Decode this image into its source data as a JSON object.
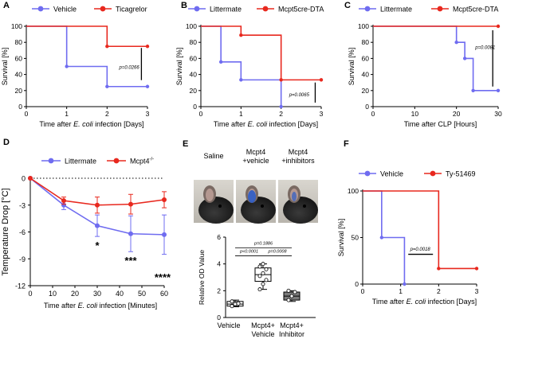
{
  "colors": {
    "blue": "#6f6cf0",
    "red": "#e8281e",
    "axis": "#000000",
    "box_white": "#ffffff",
    "box_gray": "#7a7a7a"
  },
  "chart_data": [
    {
      "panel": "A",
      "type": "survival-step",
      "xlabel": "Time after E. coli infection [Days]",
      "ylabel": "Survival [%]",
      "xlim": [
        0,
        3
      ],
      "ylim": [
        0,
        100
      ],
      "xticks": [
        0,
        1,
        2,
        3
      ],
      "yticks": [
        0,
        20,
        40,
        60,
        80,
        100
      ],
      "series": [
        {
          "name": "Vehicle",
          "color": "blue",
          "x": [
            0,
            1,
            2,
            3
          ],
          "y": [
            100,
            50,
            25,
            25
          ]
        },
        {
          "name": "Ticagrelor",
          "color": "red",
          "x": [
            0,
            2,
            3
          ],
          "y": [
            100,
            75,
            75
          ]
        }
      ],
      "annotations": [
        {
          "text": "p=0.0266",
          "x": 2.3,
          "y": 47
        }
      ],
      "sigbar": {
        "x": 2.85,
        "y1": 33,
        "y2": 73
      }
    },
    {
      "panel": "B",
      "type": "survival-step",
      "xlabel": "Time after E. coli infection [Days]",
      "ylabel": "Survival [%]",
      "xlim": [
        0,
        3
      ],
      "ylim": [
        0,
        100
      ],
      "xticks": [
        0,
        1,
        2,
        3
      ],
      "yticks": [
        0,
        20,
        40,
        60,
        80,
        100
      ],
      "series": [
        {
          "name": "Littermate",
          "color": "blue",
          "x": [
            0,
            0.5,
            1,
            2
          ],
          "y": [
            100,
            55.6,
            33.3,
            0
          ]
        },
        {
          "name": "Mcpt5cre-DTA",
          "color": "red",
          "x": [
            0,
            1,
            2,
            3
          ],
          "y": [
            100,
            88.9,
            33.3,
            33.3
          ]
        }
      ],
      "annotations": [
        {
          "text": "p=0.0065",
          "x": 2.2,
          "y": 13
        }
      ],
      "sigbar": {
        "x": 2.85,
        "y1": 5,
        "y2": 30
      }
    },
    {
      "panel": "C",
      "type": "survival-step",
      "xlabel": "Time after CLP [Hours]",
      "ylabel": "Survival [%]",
      "xlim": [
        0,
        30
      ],
      "ylim": [
        0,
        100
      ],
      "xticks": [
        0,
        10,
        20,
        30
      ],
      "yticks": [
        0,
        20,
        40,
        60,
        80,
        100
      ],
      "series": [
        {
          "name": "Littermate",
          "color": "blue",
          "x": [
            0,
            20,
            22,
            24,
            30
          ],
          "y": [
            100,
            80,
            60,
            20,
            20
          ]
        },
        {
          "name": "Mcpt5cre-DTA",
          "color": "red",
          "x": [
            0,
            30
          ],
          "y": [
            100,
            100
          ]
        }
      ],
      "annotations": [
        {
          "text": "p=0.0081",
          "x": 24.5,
          "y": 72
        }
      ],
      "sigbar": {
        "x": 28.7,
        "y1": 25,
        "y2": 95
      }
    },
    {
      "panel": "D",
      "type": "line",
      "xlabel": "Time after E. coli infection [Minutes]",
      "ylabel": "Temperature Drop [°C]",
      "xlim": [
        0,
        60
      ],
      "ylim": [
        -12,
        0
      ],
      "xticks": [
        0,
        10,
        20,
        30,
        40,
        50,
        60
      ],
      "yticks": [
        0,
        -3,
        -6,
        -9,
        -12
      ],
      "x": [
        0,
        15,
        30,
        45,
        60
      ],
      "series": [
        {
          "name": "Littermate",
          "color": "blue",
          "y": [
            0,
            -3.0,
            -5.3,
            -6.2,
            -6.3
          ],
          "err": [
            0,
            0.5,
            1.2,
            2.0,
            2.2
          ]
        },
        {
          "name": "Mcpt4-/-",
          "color": "red",
          "y": [
            0,
            -2.5,
            -3.0,
            -2.9,
            -2.4
          ],
          "err": [
            0,
            0.4,
            0.9,
            1.1,
            0.9
          ]
        }
      ],
      "significance": [
        {
          "text": "*",
          "x": 30
        },
        {
          "text": "***",
          "x": 45
        },
        {
          "text": "****",
          "x": 60
        }
      ]
    },
    {
      "panel": "E",
      "type": "box",
      "ylabel": "Relative OD Value",
      "ylim": [
        0,
        6
      ],
      "yticks": [
        0,
        2,
        4,
        6
      ],
      "groups": [
        {
          "label": "Vehicle",
          "fill": "box_white",
          "q1": 0.85,
          "median": 1.0,
          "q3": 1.2,
          "min": 0.8,
          "max": 1.3,
          "points": [
            0.85,
            1.0,
            1.05,
            1.2
          ]
        },
        {
          "label": "Mcpt4+ Vehicle",
          "fill": "box_white",
          "q1": 2.7,
          "median": 3.2,
          "q3": 3.7,
          "min": 2.1,
          "max": 4.0,
          "points": [
            2.1,
            2.5,
            2.8,
            3.1,
            3.3,
            3.6,
            3.8,
            4.0
          ]
        },
        {
          "label": "Mcpt4+ Inhibitor",
          "fill": "box_gray",
          "q1": 1.3,
          "median": 1.6,
          "q3": 1.9,
          "min": 1.2,
          "max": 2.0,
          "points": [
            1.3,
            1.6,
            1.9,
            2.0
          ]
        }
      ],
      "comparisons": [
        {
          "text": "p=0.1886",
          "from": 0,
          "to": 2,
          "y": 5.2
        },
        {
          "text": "p<0.0001",
          "from": 0,
          "to": 1,
          "y": 4.6
        },
        {
          "text": "p=0.0008",
          "from": 1,
          "to": 2,
          "y": 4.6
        }
      ],
      "photo_captions": [
        "Saline",
        "Mcpt4\n+vehicle",
        "Mcpt4\n+inhibitors"
      ]
    },
    {
      "panel": "F",
      "type": "survival-step",
      "xlabel": "Time after E. coli infection [Days]",
      "ylabel": "Survival [%]",
      "xlim": [
        0,
        3
      ],
      "ylim": [
        0,
        100
      ],
      "xticks": [
        0,
        1,
        2,
        3
      ],
      "yticks": [
        0,
        50,
        100
      ],
      "series": [
        {
          "name": "Vehicle",
          "color": "blue",
          "x": [
            0,
            0.5,
            1.1
          ],
          "y": [
            100,
            50,
            0
          ]
        },
        {
          "name": "Ty-51469",
          "color": "red",
          "x": [
            0,
            2,
            3
          ],
          "y": [
            100,
            16.7,
            16.7
          ]
        }
      ],
      "annotations": [
        {
          "text": "p=0.0018",
          "x": 1.25,
          "y": 36
        }
      ],
      "hbar": {
        "x1": 1.2,
        "x2": 1.85,
        "y": 32
      }
    }
  ],
  "panel_letters": [
    "A",
    "B",
    "C",
    "D",
    "E",
    "F"
  ]
}
